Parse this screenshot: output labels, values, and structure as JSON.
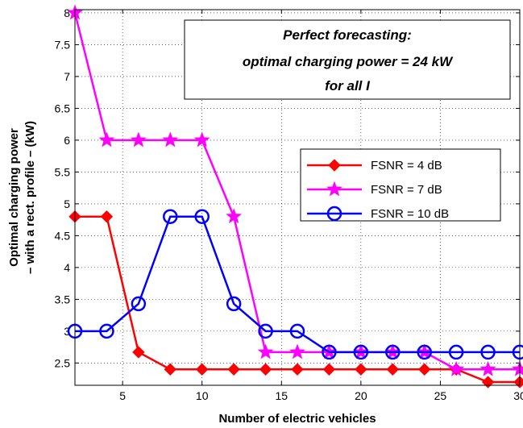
{
  "chart_data": {
    "type": "line",
    "xlabel": "Number of electric vehicles",
    "ylabel_lines": [
      "Optimal charging power",
      "– with a rect. profile – (kW)"
    ],
    "xlim": [
      2,
      30
    ],
    "ylim": [
      2.15,
      8.05
    ],
    "xticks": [
      5,
      10,
      15,
      20,
      25,
      30
    ],
    "yticks": [
      2.5,
      3,
      3.5,
      4,
      4.5,
      5,
      5.5,
      6,
      6.5,
      7,
      7.5,
      8
    ],
    "ytick_labels": [
      "2.5",
      "3",
      "3.5",
      "4",
      "4.5",
      "5",
      "5.5",
      "6",
      "6.5",
      "7",
      "7.5",
      "8"
    ],
    "grid": true,
    "legend_position": "right-middle",
    "annotation_lines": [
      "Perfect forecasting:",
      "optimal charging power = 24 kW",
      "for all I"
    ],
    "x": [
      2,
      4,
      6,
      8,
      10,
      12,
      14,
      16,
      18,
      20,
      22,
      24,
      26,
      28,
      30
    ],
    "series": [
      {
        "name": "FSNR = 4 dB",
        "color": "#ff0000",
        "marker": "diamond",
        "values": [
          4.8,
          4.8,
          2.67,
          2.4,
          2.4,
          2.4,
          2.4,
          2.4,
          2.4,
          2.4,
          2.4,
          2.4,
          2.4,
          2.2,
          2.2
        ]
      },
      {
        "name": "FSNR = 7 dB",
        "color": "#ff00ff",
        "marker": "star",
        "values": [
          8.0,
          6.0,
          6.0,
          6.0,
          6.0,
          4.8,
          2.67,
          2.67,
          2.67,
          2.67,
          2.67,
          2.67,
          2.4,
          2.4,
          2.4
        ]
      },
      {
        "name": "FSNR = 10 dB",
        "color": "#0000ff",
        "marker": "circle",
        "values": [
          3.0,
          3.0,
          3.43,
          4.8,
          4.8,
          3.43,
          3.0,
          3.0,
          2.67,
          2.67,
          2.67,
          2.67,
          2.67,
          2.67,
          2.67
        ]
      }
    ]
  }
}
